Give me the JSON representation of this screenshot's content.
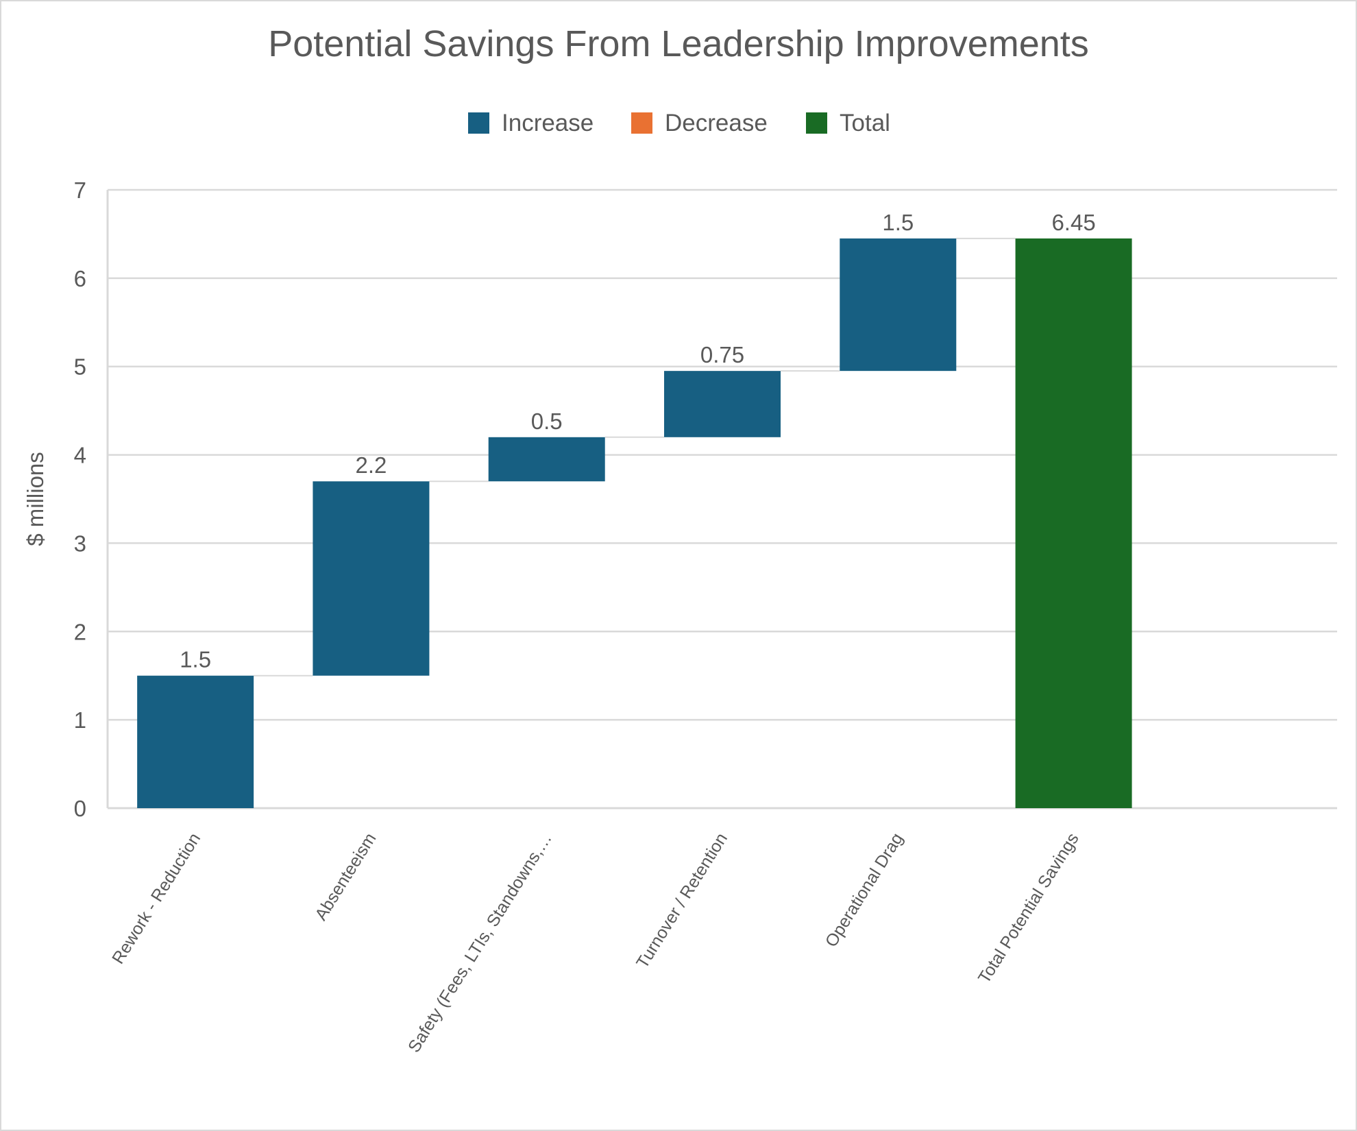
{
  "chart_data": {
    "type": "waterfall",
    "title": "Potential Savings From Leadership Improvements",
    "ylabel": "$ millions",
    "xlabel": "",
    "ylim": [
      0,
      7
    ],
    "yticks": [
      "0",
      "1",
      "2",
      "3",
      "4",
      "5",
      "6",
      "7"
    ],
    "grid": true,
    "legend_position": "top",
    "legend": [
      {
        "label": "Increase",
        "color": "#175F82"
      },
      {
        "label": "Decrease",
        "color": "#E97132"
      },
      {
        "label": "Total",
        "color": "#196B24"
      }
    ],
    "categories": [
      "Rework - Reduction",
      "Absenteeism",
      "Safety (Fees, LTIs, Standowns,…",
      "Turnover / Retention",
      "Operational Drag",
      "Total Potential Savings"
    ],
    "values": [
      1.5,
      2.2,
      0.5,
      0.75,
      1.5,
      6.45
    ],
    "kinds": [
      "increase",
      "increase",
      "increase",
      "increase",
      "increase",
      "total"
    ],
    "data_labels": [
      "1.5",
      "2.2",
      "0.5",
      "0.75",
      "1.5",
      "6.45"
    ]
  }
}
